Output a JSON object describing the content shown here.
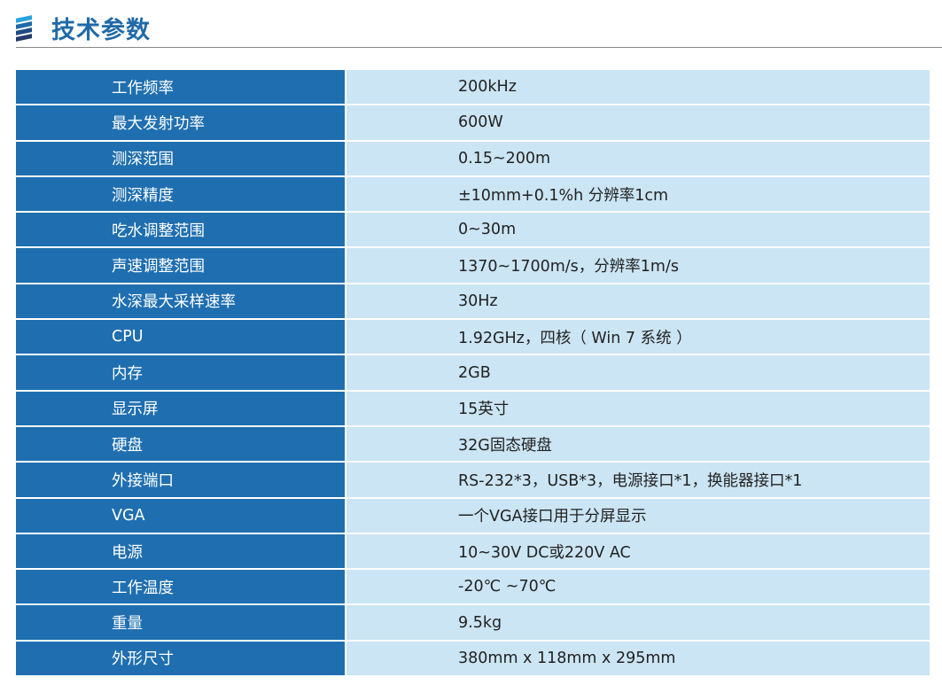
{
  "header": {
    "title": "技术参数",
    "colors": {
      "accent": "#1f6aa8",
      "key_bg": "#1f6fb0",
      "value_bg": "#cbe5f4"
    }
  },
  "specs": [
    {
      "k": "工作频率",
      "v": "200kHz"
    },
    {
      "k": "最大发射功率",
      "v": "600W"
    },
    {
      "k": "测深范围",
      "v": "0.15~200m"
    },
    {
      "k": "测深精度",
      "v": "±10mm+0.1%h   分辨率1cm"
    },
    {
      "k": "吃水调整范围",
      "v": "0~30m"
    },
    {
      "k": "声速调整范围",
      "v": "1370~1700m/s，分辨率1m/s"
    },
    {
      "k": "水深最大采样速率",
      "v": "30Hz"
    },
    {
      "k": "CPU",
      "v": "1.92GHz，四核（ Win 7 系统 ）"
    },
    {
      "k": "内存",
      "v": "2GB"
    },
    {
      "k": "显示屏",
      "v": "15英寸"
    },
    {
      "k": "硬盘",
      "v": "32G固态硬盘"
    },
    {
      "k": "外接端口",
      "v": "RS-232*3，USB*3，电源接口*1，换能器接口*1"
    },
    {
      "k": "VGA",
      "v": "一个VGA接口用于分屏显示"
    },
    {
      "k": "电源",
      "v": "10~30V DC或220V AC"
    },
    {
      "k": "工作温度",
      "v": "-20℃ ~70℃"
    },
    {
      "k": "重量",
      "v": "9.5kg"
    },
    {
      "k": "外形尺寸",
      "v": "380mm x 118mm x 295mm"
    }
  ]
}
